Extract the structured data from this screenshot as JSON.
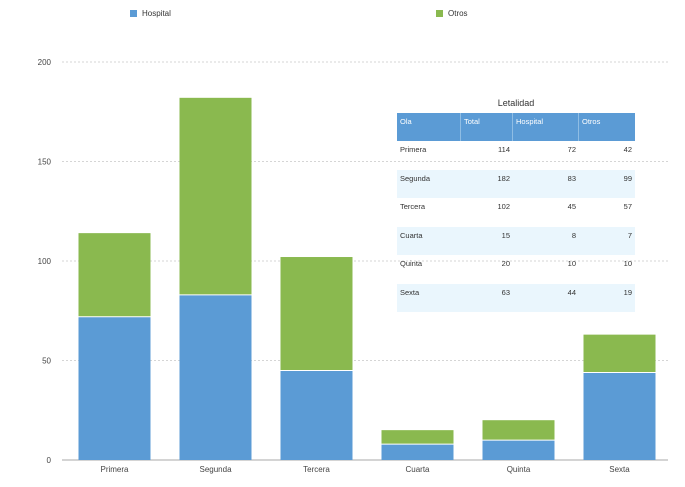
{
  "legend": [
    {
      "label": "Hospital",
      "color": "#5b9bd5"
    },
    {
      "label": "Otros",
      "color": "#8ab94f"
    }
  ],
  "chart_data": {
    "type": "bar",
    "stacked": true,
    "categories": [
      "Primera",
      "Segunda",
      "Tercera",
      "Cuarta",
      "Quinta",
      "Sexta"
    ],
    "series": [
      {
        "name": "Hospital",
        "color": "#5b9bd5",
        "values": [
          72,
          83,
          45,
          8,
          10,
          44
        ]
      },
      {
        "name": "Otros",
        "color": "#8ab94f",
        "values": [
          42,
          99,
          57,
          7,
          10,
          19
        ]
      }
    ],
    "ylim": [
      0,
      200
    ],
    "yticks": [
      0,
      50,
      100,
      150,
      200
    ],
    "grid": true,
    "legend_position": "top"
  },
  "table": {
    "title": "Letalidad",
    "headers": [
      "Ola",
      "Total",
      "Hospital",
      "Otros"
    ],
    "rows": [
      [
        "Primera",
        "114",
        "72",
        "42"
      ],
      [
        "Segunda",
        "182",
        "83",
        "99"
      ],
      [
        "Tercera",
        "102",
        "45",
        "57"
      ],
      [
        "Cuarta",
        "15",
        "8",
        "7"
      ],
      [
        "Quinta",
        "20",
        "10",
        "10"
      ],
      [
        "Sexta",
        "63",
        "44",
        "19"
      ]
    ]
  }
}
